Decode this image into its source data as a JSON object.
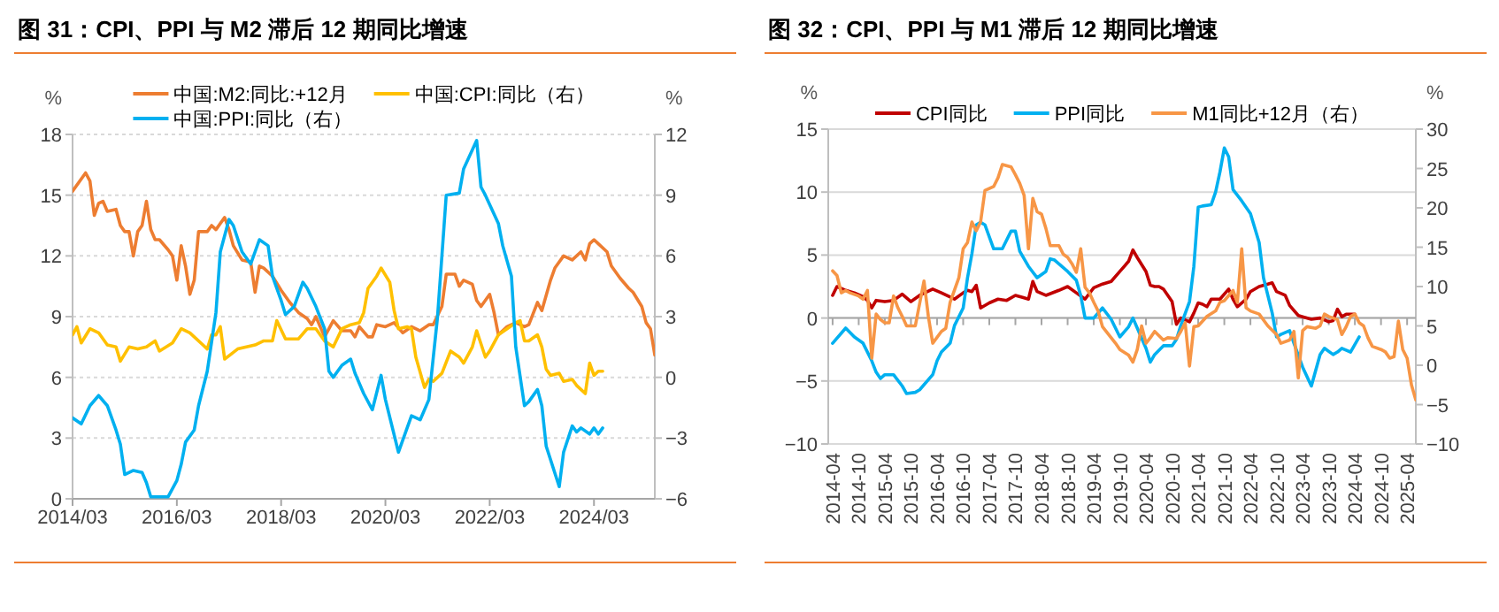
{
  "chart_data": [
    {
      "type": "line",
      "title": "图 31：CPI、PPI 与 M2 滞后 12 期同比增速",
      "ylabel": "%",
      "y2label": "%",
      "legend": "top",
      "grid": "y",
      "xlim": [
        "2014-03",
        "2025-05"
      ],
      "xticks": [
        {
          "value": "2014-03",
          "label": "2014/03"
        },
        {
          "value": "2016-03",
          "label": "2016/03"
        },
        {
          "value": "2018-03",
          "label": "2018/03"
        },
        {
          "value": "2020-03",
          "label": "2020/03"
        },
        {
          "value": "2022-03",
          "label": "2022/03"
        },
        {
          "value": "2024-03",
          "label": "2024/03"
        }
      ],
      "ylim": [
        0,
        18
      ],
      "yticks": [
        0,
        3,
        6,
        9,
        12,
        15,
        18
      ],
      "y2lim": [
        -6,
        12
      ],
      "y2ticks": [
        -6,
        -3,
        0,
        3,
        6,
        9,
        12
      ],
      "series": [
        {
          "name": "中国:M2:同比:+12月",
          "color": "#ed7d31",
          "x": [
            "2014-03",
            "2014-06",
            "2014-07",
            "2014-08",
            "2014-09",
            "2014-10",
            "2014-11",
            "2015-01",
            "2015-02",
            "2015-03",
            "2015-04",
            "2015-05",
            "2015-06",
            "2015-07",
            "2015-08",
            "2015-09",
            "2015-10",
            "2015-11",
            "2016-01",
            "2016-02",
            "2016-03",
            "2016-04",
            "2016-05",
            "2016-06",
            "2016-07",
            "2016-08",
            "2016-10",
            "2016-11",
            "2016-12",
            "2017-02",
            "2017-03",
            "2017-04",
            "2017-06",
            "2017-08",
            "2017-09",
            "2017-10",
            "2017-11",
            "2018-01",
            "2018-03",
            "2018-05",
            "2018-07",
            "2018-09",
            "2018-10",
            "2018-11",
            "2019-01",
            "2019-03",
            "2019-05",
            "2019-07",
            "2019-08",
            "2019-09",
            "2019-11",
            "2019-12",
            "2020-01",
            "2020-03",
            "2020-05",
            "2020-07",
            "2020-09",
            "2020-11",
            "2021-01",
            "2021-02",
            "2021-04",
            "2021-05",
            "2021-07",
            "2021-08",
            "2021-09",
            "2021-11",
            "2021-12",
            "2022-01",
            "2022-03",
            "2022-04",
            "2022-05",
            "2022-07",
            "2022-09",
            "2022-11",
            "2022-12",
            "2023-02",
            "2023-03",
            "2023-05",
            "2023-06",
            "2023-08",
            "2023-10",
            "2023-12",
            "2024-01",
            "2024-02",
            "2024-03",
            "2024-04",
            "2024-06",
            "2024-07",
            "2024-09",
            "2024-11",
            "2024-12",
            "2025-02",
            "2025-03",
            "2025-04",
            "2025-05"
          ],
          "values": [
            15.2,
            16.1,
            15.7,
            14.0,
            14.6,
            14.7,
            14.2,
            14.3,
            13.5,
            13.2,
            13.2,
            12.0,
            13.2,
            13.5,
            14.7,
            13.3,
            12.8,
            12.8,
            12.3,
            12.0,
            10.8,
            12.5,
            11.5,
            10.1,
            10.8,
            13.2,
            13.2,
            13.5,
            13.3,
            13.9,
            13.3,
            12.5,
            11.8,
            11.7,
            10.2,
            11.5,
            11.4,
            11.0,
            10.3,
            9.7,
            9.2,
            8.9,
            8.6,
            9.0,
            8.0,
            8.8,
            8.3,
            8.3,
            8.0,
            8.5,
            8.0,
            8.0,
            8.6,
            8.5,
            8.7,
            8.2,
            8.5,
            8.3,
            8.6,
            8.6,
            9.5,
            11.1,
            11.1,
            10.5,
            10.8,
            10.6,
            9.8,
            9.5,
            10.1,
            9.2,
            8.1,
            8.5,
            8.7,
            8.5,
            8.6,
            9.7,
            9.3,
            10.8,
            11.4,
            12.0,
            11.8,
            12.2,
            11.8,
            12.6,
            12.8,
            12.6,
            12.2,
            11.5,
            10.9,
            10.4,
            10.2,
            9.5,
            8.7,
            8.4,
            7.1
          ]
        },
        {
          "name": "中国:CPI:同比（右）",
          "color": "#ffc000",
          "axis": "y2",
          "x": [
            "2014-03",
            "2014-04",
            "2014-05",
            "2014-07",
            "2014-09",
            "2014-11",
            "2015-01",
            "2015-02",
            "2015-04",
            "2015-06",
            "2015-08",
            "2015-10",
            "2015-11",
            "2016-02",
            "2016-04",
            "2016-06",
            "2016-09",
            "2016-10",
            "2016-11",
            "2016-12",
            "2017-01",
            "2017-02",
            "2017-05",
            "2017-07",
            "2017-09",
            "2017-11",
            "2018-01",
            "2018-02",
            "2018-04",
            "2018-07",
            "2018-09",
            "2018-11",
            "2019-01",
            "2019-03",
            "2019-05",
            "2019-07",
            "2019-09",
            "2019-10",
            "2019-11",
            "2020-01",
            "2020-02",
            "2020-04",
            "2020-05",
            "2020-06",
            "2020-08",
            "2020-09",
            "2020-10",
            "2020-12",
            "2021-01",
            "2021-02",
            "2021-04",
            "2021-06",
            "2021-08",
            "2021-09",
            "2021-11",
            "2021-12",
            "2022-02",
            "2022-03",
            "2022-05",
            "2022-07",
            "2022-09",
            "2022-10",
            "2022-11",
            "2022-12",
            "2023-02",
            "2023-03",
            "2023-04",
            "2023-05",
            "2023-07",
            "2023-08",
            "2023-10",
            "2023-11",
            "2023-12",
            "2024-01",
            "2024-02",
            "2024-03",
            "2024-04",
            "2024-05"
          ],
          "values": [
            2.1,
            2.5,
            1.7,
            2.4,
            2.2,
            1.6,
            1.5,
            0.8,
            1.5,
            1.4,
            1.5,
            1.8,
            1.3,
            1.7,
            2.4,
            2.2,
            1.6,
            1.4,
            2.1,
            2.1,
            2.5,
            0.9,
            1.4,
            1.5,
            1.6,
            1.8,
            1.8,
            2.8,
            1.9,
            1.9,
            2.4,
            2.4,
            1.8,
            1.5,
            2.4,
            2.6,
            2.7,
            3.2,
            4.4,
            5.0,
            5.4,
            4.7,
            3.3,
            2.4,
            2.5,
            2.4,
            1.0,
            -0.5,
            -0.1,
            -0.2,
            0.2,
            1.3,
            1.0,
            0.7,
            1.5,
            2.3,
            1.0,
            1.3,
            2.1,
            2.4,
            2.7,
            2.8,
            1.8,
            1.8,
            2.1,
            1.5,
            0.4,
            0.1,
            0.2,
            -0.2,
            -0.1,
            -0.4,
            -0.6,
            -0.8,
            0.7,
            0.1,
            0.3,
            0.3
          ]
        },
        {
          "name": "中国:PPI:同比（右）",
          "color": "#00b0f0",
          "axis": "y2",
          "x": [
            "2014-03",
            "2014-05",
            "2014-07",
            "2014-09",
            "2014-11",
            "2015-01",
            "2015-02",
            "2015-03",
            "2015-05",
            "2015-07",
            "2015-08",
            "2015-09",
            "2015-11",
            "2016-01",
            "2016-03",
            "2016-04",
            "2016-05",
            "2016-07",
            "2016-08",
            "2016-10",
            "2016-12",
            "2017-01",
            "2017-03",
            "2017-04",
            "2017-06",
            "2017-08",
            "2017-09",
            "2017-10",
            "2017-12",
            "2018-01",
            "2018-03",
            "2018-04",
            "2018-06",
            "2018-08",
            "2018-09",
            "2018-11",
            "2019-01",
            "2019-02",
            "2019-03",
            "2019-05",
            "2019-07",
            "2019-08",
            "2019-10",
            "2019-12",
            "2020-02",
            "2020-03",
            "2020-06",
            "2020-08",
            "2020-09",
            "2020-11",
            "2021-01",
            "2021-03",
            "2021-05",
            "2021-08",
            "2021-09",
            "2021-12",
            "2022-01",
            "2022-02",
            "2022-05",
            "2022-06",
            "2022-08",
            "2022-09",
            "2022-11",
            "2022-12",
            "2023-02",
            "2023-03",
            "2023-04",
            "2023-07",
            "2023-08",
            "2023-10",
            "2023-11",
            "2023-12",
            "2024-02",
            "2024-03",
            "2024-04",
            "2024-05"
          ],
          "values": [
            -2.0,
            -2.3,
            -1.4,
            -0.9,
            -1.4,
            -2.6,
            -3.3,
            -4.8,
            -4.6,
            -4.7,
            -5.2,
            -5.9,
            -5.9,
            -5.9,
            -5.1,
            -4.3,
            -3.2,
            -2.6,
            -1.4,
            0.3,
            3.2,
            6.2,
            7.8,
            7.5,
            6.2,
            5.6,
            6.2,
            6.8,
            6.5,
            5.0,
            3.8,
            3.1,
            3.5,
            4.7,
            4.4,
            3.5,
            2.4,
            0.3,
            0,
            0.6,
            0.9,
            0.2,
            -0.8,
            -1.6,
            0.1,
            -1.1,
            -3.7,
            -2.5,
            -1.9,
            -2.1,
            -1.1,
            3.0,
            9.0,
            9.1,
            10.3,
            11.7,
            9.4,
            9.0,
            7.6,
            6.5,
            5.0,
            1.5,
            -1.4,
            -1.2,
            -0.6,
            -1.4,
            -3.4,
            -5.4,
            -3.7,
            -2.4,
            -2.7,
            -2.5,
            -2.8,
            -2.5,
            -2.8,
            -2.5
          ]
        }
      ]
    },
    {
      "type": "line",
      "title": "图 32：CPI、PPI 与 M1 滞后 12 期同比增速",
      "ylabel": "%",
      "y2label": "%",
      "legend": "top",
      "grid": "y",
      "xlim": [
        "2014-03",
        "2025-06"
      ],
      "xticks": [
        {
          "value": "2014-04",
          "label": "2014-04"
        },
        {
          "value": "2014-10",
          "label": "2014-10"
        },
        {
          "value": "2015-04",
          "label": "2015-04"
        },
        {
          "value": "2015-10",
          "label": "2015-10"
        },
        {
          "value": "2016-04",
          "label": "2016-04"
        },
        {
          "value": "2016-10",
          "label": "2016-10"
        },
        {
          "value": "2017-04",
          "label": "2017-04"
        },
        {
          "value": "2017-10",
          "label": "2017-10"
        },
        {
          "value": "2018-04",
          "label": "2018-04"
        },
        {
          "value": "2018-10",
          "label": "2018-10"
        },
        {
          "value": "2019-04",
          "label": "2019-04"
        },
        {
          "value": "2019-10",
          "label": "2019-10"
        },
        {
          "value": "2020-04",
          "label": "2020-04"
        },
        {
          "value": "2020-10",
          "label": "2020-10"
        },
        {
          "value": "2021-04",
          "label": "2021-04"
        },
        {
          "value": "2021-10",
          "label": "2021-10"
        },
        {
          "value": "2022-04",
          "label": "2022-04"
        },
        {
          "value": "2022-10",
          "label": "2022-10"
        },
        {
          "value": "2023-04",
          "label": "2023-04"
        },
        {
          "value": "2023-10",
          "label": "2023-10"
        },
        {
          "value": "2024-04",
          "label": "2024-04"
        },
        {
          "value": "2024-10",
          "label": "2024-10"
        },
        {
          "value": "2025-04",
          "label": "2025-04"
        }
      ],
      "ylim": [
        -10,
        15
      ],
      "yticks": [
        -10,
        -5,
        0,
        5,
        10,
        15
      ],
      "y2lim": [
        -10,
        30
      ],
      "y2ticks": [
        -10,
        -5,
        0,
        5,
        10,
        15,
        20,
        25,
        30
      ],
      "series": [
        {
          "name": "CPI同比",
          "color": "#c00000",
          "x": [
            "2014-04",
            "2014-05",
            "2014-07",
            "2014-09",
            "2014-11",
            "2014-12",
            "2015-01",
            "2015-02",
            "2015-04",
            "2015-06",
            "2015-08",
            "2015-10",
            "2015-12",
            "2016-03",
            "2016-05",
            "2016-08",
            "2016-10",
            "2016-11",
            "2016-12",
            "2017-01",
            "2017-02",
            "2017-04",
            "2017-06",
            "2017-08",
            "2017-10",
            "2017-12",
            "2018-01",
            "2018-02",
            "2018-03",
            "2018-05",
            "2018-08",
            "2018-10",
            "2018-12",
            "2019-02",
            "2019-04",
            "2019-06",
            "2019-07",
            "2019-08",
            "2019-10",
            "2019-12",
            "2020-01",
            "2020-02",
            "2020-04",
            "2020-05",
            "2020-06",
            "2020-07",
            "2020-08",
            "2020-10",
            "2020-11",
            "2020-12",
            "2021-02",
            "2021-03",
            "2021-04",
            "2021-05",
            "2021-06",
            "2021-07",
            "2021-09",
            "2021-11",
            "2021-12",
            "2022-01",
            "2022-03",
            "2022-04",
            "2022-06",
            "2022-08",
            "2022-09",
            "2022-10",
            "2022-12",
            "2023-01",
            "2023-03",
            "2023-04",
            "2023-06",
            "2023-08",
            "2023-10",
            "2023-11",
            "2023-12",
            "2024-01",
            "2024-02",
            "2024-04"
          ],
          "values": [
            1.8,
            2.5,
            2.2,
            2.0,
            1.7,
            1.4,
            0.8,
            1.4,
            1.3,
            1.4,
            1.9,
            1.3,
            1.8,
            2.3,
            2.0,
            1.5,
            2.0,
            2.2,
            2.1,
            2.6,
            0.8,
            1.2,
            1.5,
            1.4,
            1.8,
            1.6,
            1.5,
            2.9,
            2.1,
            1.8,
            2.2,
            2.5,
            2.0,
            1.5,
            2.4,
            2.7,
            2.8,
            2.9,
            3.7,
            4.5,
            5.4,
            4.8,
            3.7,
            2.6,
            2.5,
            2.5,
            2.3,
            1.3,
            -0.5,
            0,
            -0.3,
            0.4,
            1.2,
            1.1,
            0.9,
            1.5,
            1.5,
            2.3,
            1.5,
            0.9,
            1.5,
            2.1,
            2.5,
            2.7,
            2.8,
            2.1,
            1.8,
            1.0,
            0.2,
            0.1,
            -0.1,
            0,
            -0.3,
            -0.2,
            0.7,
            0.1,
            0.3,
            0.3
          ]
        },
        {
          "name": "PPI同比",
          "color": "#00b0f0",
          "x": [
            "2014-04",
            "2014-07",
            "2014-09",
            "2014-11",
            "2015-01",
            "2015-02",
            "2015-03",
            "2015-04",
            "2015-06",
            "2015-08",
            "2015-09",
            "2015-11",
            "2015-12",
            "2016-03",
            "2016-04",
            "2016-05",
            "2016-07",
            "2016-08",
            "2016-10",
            "2016-11",
            "2016-12",
            "2017-01",
            "2017-02",
            "2017-03",
            "2017-05",
            "2017-07",
            "2017-09",
            "2017-10",
            "2017-11",
            "2018-01",
            "2018-03",
            "2018-05",
            "2018-06",
            "2018-07",
            "2018-10",
            "2018-12",
            "2019-01",
            "2019-02",
            "2019-04",
            "2019-06",
            "2019-08",
            "2019-10",
            "2019-12",
            "2020-01",
            "2020-02",
            "2020-04",
            "2020-05",
            "2020-06",
            "2020-08",
            "2020-10",
            "2020-11",
            "2020-12",
            "2021-02",
            "2021-03",
            "2021-04",
            "2021-05",
            "2021-07",
            "2021-08",
            "2021-09",
            "2021-10",
            "2021-11",
            "2021-12",
            "2022-02",
            "2022-04",
            "2022-06",
            "2022-07",
            "2022-09",
            "2022-10",
            "2022-11",
            "2023-01",
            "2023-02",
            "2023-04",
            "2023-06",
            "2023-08",
            "2023-09",
            "2023-11",
            "2023-12",
            "2024-01",
            "2024-03",
            "2024-05"
          ],
          "values": [
            -2.0,
            -0.8,
            -1.5,
            -2.0,
            -3.4,
            -4.3,
            -4.8,
            -4.5,
            -4.5,
            -5.4,
            -6.0,
            -5.9,
            -5.7,
            -4.5,
            -3.4,
            -2.7,
            -2.0,
            -0.6,
            0.8,
            3.2,
            5.1,
            7.4,
            7.6,
            7.4,
            5.5,
            5.5,
            6.9,
            6.9,
            5.3,
            4.1,
            3.2,
            3.7,
            4.7,
            4.6,
            3.7,
            3.0,
            1.8,
            0,
            0,
            0.8,
            -0.1,
            -1.5,
            -0.7,
            0,
            -0.8,
            -2.4,
            -3.5,
            -2.9,
            -2.2,
            -2.2,
            -1.7,
            -0.6,
            1.3,
            4.1,
            8.8,
            8.9,
            9.0,
            10.0,
            11.6,
            13.5,
            12.8,
            10.2,
            9.3,
            8.3,
            6.0,
            3.2,
            0.4,
            -1.5,
            -1.3,
            -1.0,
            -2.0,
            -3.9,
            -5.4,
            -2.9,
            -2.4,
            -2.9,
            -2.7,
            -2.4,
            -2.7,
            -1.5
          ]
        },
        {
          "name": "M1同比+12月（右）",
          "color": "#f79646",
          "axis": "y2",
          "x": [
            "2014-04",
            "2014-05",
            "2014-06",
            "2014-07",
            "2014-08",
            "2014-10",
            "2014-11",
            "2014-12",
            "2015-01",
            "2015-02",
            "2015-03",
            "2015-04",
            "2015-05",
            "2015-06",
            "2015-07",
            "2015-08",
            "2015-09",
            "2015-11",
            "2016-01",
            "2016-02",
            "2016-03",
            "2016-05",
            "2016-06",
            "2016-07",
            "2016-09",
            "2016-10",
            "2016-11",
            "2016-12",
            "2017-01",
            "2017-02",
            "2017-03",
            "2017-05",
            "2017-06",
            "2017-07",
            "2017-09",
            "2017-10",
            "2017-11",
            "2017-12",
            "2018-01",
            "2018-02",
            "2018-03",
            "2018-04",
            "2018-05",
            "2018-06",
            "2018-08",
            "2018-09",
            "2018-10",
            "2018-11",
            "2018-12",
            "2019-01",
            "2019-02",
            "2019-03",
            "2019-04",
            "2019-05",
            "2019-06",
            "2019-08",
            "2019-09",
            "2019-10",
            "2019-12",
            "2020-01",
            "2020-02",
            "2020-03",
            "2020-04",
            "2020-05",
            "2020-06",
            "2020-08",
            "2020-09",
            "2020-11",
            "2020-12",
            "2021-01",
            "2021-02",
            "2021-03",
            "2021-04",
            "2021-06",
            "2021-08",
            "2021-09",
            "2021-10",
            "2021-12",
            "2022-01",
            "2022-02",
            "2022-03",
            "2022-04",
            "2022-06",
            "2022-08",
            "2022-10",
            "2022-11",
            "2023-01",
            "2023-02",
            "2023-03",
            "2023-04",
            "2023-05",
            "2023-07",
            "2023-08",
            "2023-09",
            "2023-10",
            "2023-12",
            "2024-01",
            "2024-02",
            "2024-03",
            "2024-04",
            "2024-05",
            "2024-06",
            "2024-07",
            "2024-08",
            "2024-10",
            "2024-11",
            "2024-12",
            "2025-01",
            "2025-02",
            "2025-03",
            "2025-04",
            "2025-05",
            "2025-06"
          ],
          "values": [
            12.0,
            11.4,
            9.2,
            9.5,
            9.2,
            8.8,
            8.4,
            9.5,
            0.9,
            6.5,
            5.8,
            5.4,
            5.4,
            8.8,
            7.3,
            6.2,
            5.0,
            5.0,
            10.7,
            6.2,
            2.8,
            4.3,
            4.7,
            8.0,
            11.1,
            14.8,
            15.6,
            18.2,
            17.1,
            18.2,
            22.2,
            22.7,
            23.8,
            25.5,
            25.2,
            24.2,
            23.1,
            21.6,
            14.8,
            21.2,
            19.5,
            19.2,
            17.4,
            15.2,
            15.2,
            14.1,
            13.7,
            12.9,
            11.8,
            14.8,
            9.9,
            9.2,
            8.0,
            6.9,
            4.9,
            3.5,
            2.8,
            2.0,
            1.3,
            0.4,
            2.0,
            5.0,
            2.8,
            3.5,
            4.3,
            3.2,
            3.5,
            3.4,
            4.3,
            5.4,
            -0.1,
            4.9,
            5.0,
            6.2,
            6.9,
            8.0,
            8.2,
            9.5,
            8.0,
            14.8,
            7.3,
            6.9,
            6.5,
            5.0,
            3.9,
            2.8,
            3.2,
            4.3,
            -1.6,
            4.4,
            4.9,
            4.7,
            5.0,
            6.5,
            6.2,
            5.8,
            3.9,
            4.9,
            6.2,
            6.5,
            5.4,
            5.0,
            3.5,
            2.4,
            2.0,
            1.7,
            0.9,
            1.1,
            5.6,
            2.0,
            0.9,
            -2.5,
            -4.4
          ]
        }
      ]
    }
  ]
}
